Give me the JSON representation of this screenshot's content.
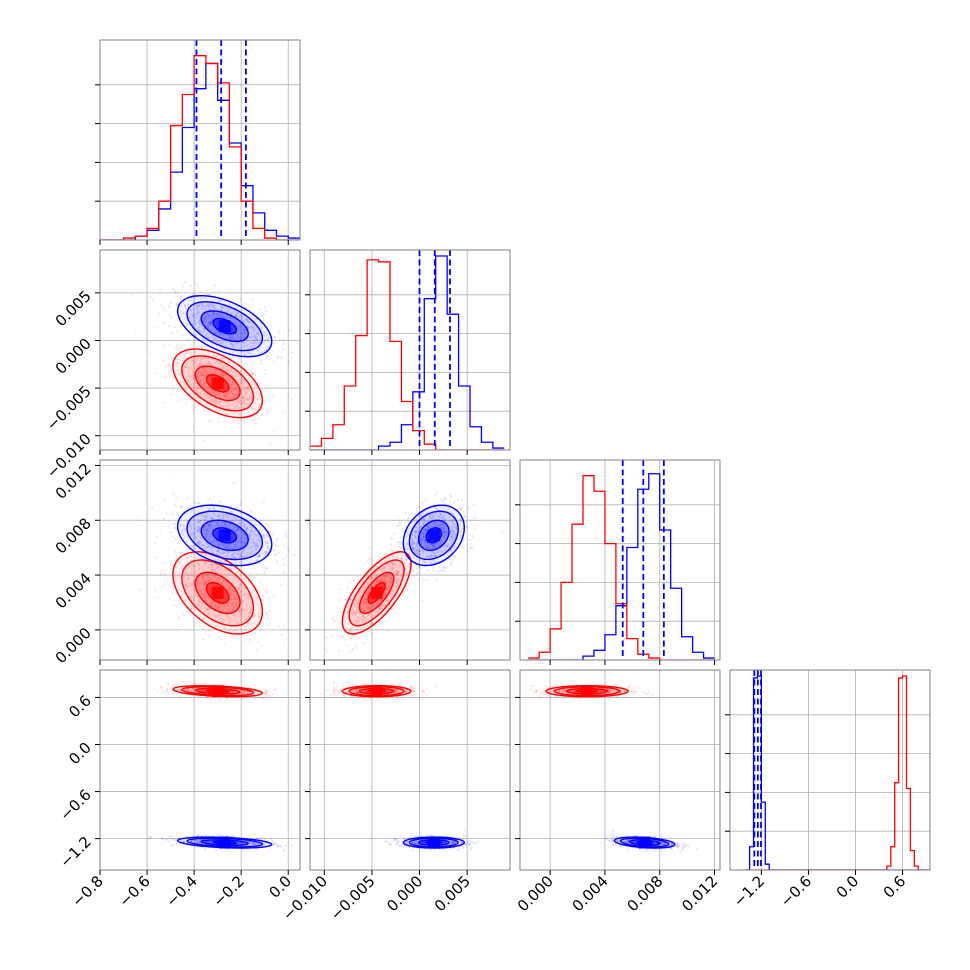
{
  "chart_data": {
    "type": "corner",
    "title": "",
    "colors": {
      "red": "#ff0000",
      "blue": "#0000ff",
      "grid": "#b0b0b0",
      "frame": "#808080"
    },
    "grid": true,
    "parameters": [
      {
        "range": [
          -0.8,
          0.05
        ],
        "ticks": [
          -0.8,
          -0.6,
          -0.4,
          -0.2,
          0.0
        ],
        "tick_labels": [
          "−0.8",
          "−0.6",
          "−0.4",
          "−0.2",
          "0.0"
        ]
      },
      {
        "range": [
          -0.0115,
          0.0095
        ],
        "ticks": [
          -0.01,
          -0.005,
          0.0,
          0.005
        ],
        "tick_labels": [
          "−0.010",
          "−0.005",
          "0.000",
          "0.005"
        ]
      },
      {
        "range": [
          -0.0022,
          0.0124
        ],
        "ticks": [
          0.0,
          0.004,
          0.008,
          0.012
        ],
        "tick_labels": [
          "0.000",
          "0.004",
          "0.008",
          "0.012"
        ]
      },
      {
        "range": [
          -1.6,
          0.95
        ],
        "ticks": [
          -1.2,
          -0.6,
          0.0,
          0.6
        ],
        "tick_labels": [
          "−1.2",
          "−0.6",
          "0.0",
          "0.6"
        ]
      }
    ],
    "series": [
      {
        "color": "#ff0000",
        "means": [
          -0.3,
          -0.0045,
          0.0027,
          0.68
        ],
        "sds": [
          0.095,
          0.0018,
          0.0015,
          0.035
        ],
        "correlations": {
          "0-1": -0.5,
          "0-2": -0.45,
          "1-2": 0.7,
          "0-3": -0.35,
          "1-3": 0.0,
          "2-3": 0.0
        }
      },
      {
        "color": "#0000ff",
        "means": [
          -0.27,
          0.0015,
          0.0069,
          -1.25
        ],
        "sds": [
          0.1,
          0.0016,
          0.0011,
          0.035
        ],
        "correlations": {
          "0-1": -0.5,
          "0-2": -0.3,
          "1-2": 0.25,
          "0-3": -0.35,
          "1-3": 0.0,
          "2-3": -0.35
        }
      }
    ],
    "quantile_lines": {
      "color": "#0000ff",
      "style": "dashed",
      "values": [
        [
          -0.39,
          -0.285,
          -0.18
        ],
        [
          0.0,
          0.0016,
          0.0032
        ],
        [
          0.0053,
          0.0068,
          0.0083
        ],
        [
          -1.29,
          -1.245,
          -1.205
        ]
      ]
    },
    "histograms": [
      {
        "bins": [
          -0.8,
          -0.75,
          -0.7,
          -0.65,
          -0.6,
          -0.55,
          -0.5,
          -0.45,
          -0.4,
          -0.35,
          -0.3,
          -0.25,
          -0.2,
          -0.15,
          -0.1,
          -0.05,
          0.0,
          0.05
        ],
        "red": [
          0.0,
          0.0,
          0.01,
          0.02,
          0.06,
          0.2,
          0.59,
          0.75,
          0.95,
          0.91,
          0.81,
          0.48,
          0.2,
          0.06,
          0.01,
          0.0,
          0.0
        ],
        "blue": [
          0.0,
          0.0,
          0.0,
          0.02,
          0.05,
          0.16,
          0.35,
          0.58,
          0.78,
          0.91,
          0.72,
          0.5,
          0.28,
          0.14,
          0.05,
          0.02,
          0.01
        ]
      },
      {
        "bins": [
          -0.0115,
          -0.0103,
          -0.0091,
          -0.0079,
          -0.0067,
          -0.0055,
          -0.0043,
          -0.0031,
          -0.0019,
          -0.0007,
          0.0005,
          0.0017,
          0.0029,
          0.0041,
          0.0053,
          0.0065,
          0.0077,
          0.0089
        ],
        "red": [
          0.02,
          0.06,
          0.13,
          0.33,
          0.59,
          0.98,
          0.97,
          0.56,
          0.25,
          0.1,
          0.03,
          0.0,
          0.0,
          0.0,
          0.0,
          0.0,
          0.0
        ],
        "blue": [
          0.0,
          0.0,
          0.0,
          0.0,
          0.0,
          0.0,
          0.02,
          0.04,
          0.13,
          0.3,
          0.78,
          1.0,
          0.7,
          0.33,
          0.12,
          0.04,
          0.01
        ]
      },
      {
        "bins": [
          -0.0016,
          -0.0008,
          0.0,
          0.0008,
          0.0016,
          0.0024,
          0.0032,
          0.004,
          0.0048,
          0.0056,
          0.0064,
          0.0072,
          0.008,
          0.0088,
          0.0096,
          0.0104,
          0.0112,
          0.012
        ],
        "red": [
          0.01,
          0.04,
          0.16,
          0.4,
          0.7,
          0.95,
          0.87,
          0.6,
          0.29,
          0.11,
          0.03,
          0.01,
          0.0,
          0.0,
          0.0,
          0.0,
          0.0
        ],
        "blue": [
          0.0,
          0.0,
          0.0,
          0.0,
          0.0,
          0.02,
          0.05,
          0.13,
          0.28,
          0.58,
          0.88,
          0.96,
          0.67,
          0.37,
          0.12,
          0.04,
          0.01
        ]
      },
      {
        "bins": [
          -1.4,
          -1.35,
          -1.3,
          -1.25,
          -1.2,
          -1.15,
          -1.1,
          -1.05,
          -1.0,
          -0.95,
          -0.9,
          -0.85,
          -0.8,
          -0.75,
          -0.7,
          -0.65,
          -0.6,
          -0.55,
          -0.5,
          -0.45,
          -0.4,
          -0.35,
          -0.3,
          -0.25,
          -0.2,
          -0.15,
          -0.1,
          -0.05,
          0.0,
          0.05,
          0.1,
          0.15,
          0.2,
          0.25,
          0.3,
          0.35,
          0.4,
          0.45,
          0.5,
          0.55,
          0.6,
          0.65,
          0.7,
          0.75,
          0.8,
          0.85,
          0.9,
          0.95
        ],
        "red": [
          0,
          0,
          0,
          0,
          0,
          0,
          0,
          0,
          0,
          0,
          0,
          0,
          0,
          0,
          0,
          0,
          0,
          0,
          0,
          0,
          0,
          0,
          0,
          0,
          0,
          0,
          0,
          0,
          0,
          0,
          0,
          0,
          0,
          0,
          0,
          0,
          0.02,
          0.12,
          0.45,
          0.99,
          1.0,
          0.42,
          0.1,
          0.02,
          0,
          0,
          0
        ],
        "blue": [
          0,
          0.12,
          0.99,
          1.0,
          0.35,
          0.03,
          0,
          0,
          0,
          0,
          0,
          0,
          0,
          0,
          0,
          0,
          0,
          0,
          0,
          0,
          0,
          0,
          0,
          0,
          0,
          0,
          0,
          0,
          0,
          0,
          0,
          0,
          0,
          0,
          0,
          0,
          0,
          0,
          0,
          0,
          0,
          0,
          0,
          0,
          0,
          0,
          0
        ]
      }
    ]
  }
}
